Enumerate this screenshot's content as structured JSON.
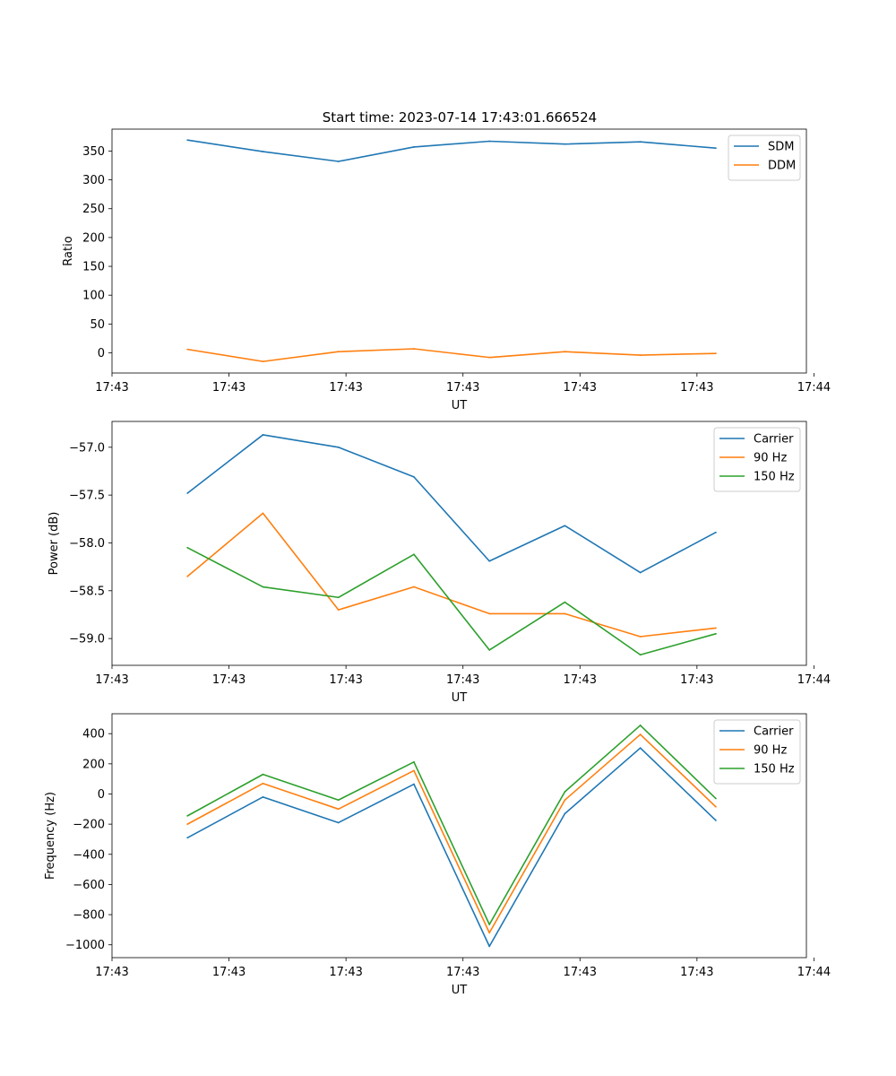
{
  "figure": {
    "title": "Start time: 2023-07-14 17:43:01.666524"
  },
  "chart_data": [
    {
      "type": "line",
      "xlabel": "UT",
      "ylabel": "Ratio",
      "xlim": [
        0,
        9.2
      ],
      "ylim": [
        -35,
        388
      ],
      "x": [
        1,
        2,
        3,
        4,
        5,
        6,
        7,
        8
      ],
      "xticks": [
        0,
        1.55,
        3.1,
        4.65,
        6.2,
        7.75,
        9.3
      ],
      "xtick_labels": [
        "17:43",
        "17:43",
        "17:43",
        "17:43",
        "17:43",
        "17:43",
        "17:44"
      ],
      "yticks": [
        0,
        50,
        100,
        150,
        200,
        250,
        300,
        350
      ],
      "ytick_labels": [
        "0",
        "50",
        "100",
        "150",
        "200",
        "250",
        "300",
        "350"
      ],
      "legend": "top-right",
      "series": [
        {
          "name": "SDM",
          "color": "#1f77b4",
          "values": [
            369,
            349,
            332,
            357,
            367,
            362,
            366,
            355
          ]
        },
        {
          "name": "DDM",
          "color": "#ff7f0e",
          "values": [
            6,
            -15,
            2,
            7,
            -8,
            2,
            -4,
            -1
          ]
        }
      ]
    },
    {
      "type": "line",
      "xlabel": "UT",
      "ylabel": "Power (dB)",
      "xlim": [
        0,
        9.2
      ],
      "ylim": [
        -59.28,
        -56.73
      ],
      "x": [
        1,
        2,
        3,
        4,
        5,
        6,
        7,
        8
      ],
      "xticks": [
        0,
        1.55,
        3.1,
        4.65,
        6.2,
        7.75,
        9.3
      ],
      "xtick_labels": [
        "17:43",
        "17:43",
        "17:43",
        "17:43",
        "17:43",
        "17:43",
        "17:44"
      ],
      "yticks": [
        -59.0,
        -58.5,
        -58.0,
        -57.5,
        -57.0
      ],
      "ytick_labels": [
        "−59.0",
        "−58.5",
        "−58.0",
        "−57.5",
        "−57.0"
      ],
      "legend": "top-right",
      "series": [
        {
          "name": "Carrier",
          "color": "#1f77b4",
          "values": [
            -57.48,
            -56.87,
            -57.0,
            -57.31,
            -58.19,
            -57.82,
            -58.31,
            -57.89
          ]
        },
        {
          "name": "90 Hz",
          "color": "#ff7f0e",
          "values": [
            -58.35,
            -57.69,
            -58.7,
            -58.46,
            -58.74,
            -58.74,
            -58.98,
            -58.89
          ]
        },
        {
          "name": "150 Hz",
          "color": "#2ca02c",
          "values": [
            -58.05,
            -58.46,
            -58.57,
            -58.12,
            -59.12,
            -58.62,
            -59.17,
            -58.95
          ]
        }
      ]
    },
    {
      "type": "line",
      "xlabel": "UT",
      "ylabel": "Frequency (Hz)",
      "xlim": [
        0,
        9.2
      ],
      "ylim": [
        -1085,
        532
      ],
      "x": [
        1,
        2,
        3,
        4,
        5,
        6,
        7,
        8
      ],
      "xticks": [
        0,
        1.55,
        3.1,
        4.65,
        6.2,
        7.75,
        9.3
      ],
      "xtick_labels": [
        "17:43",
        "17:43",
        "17:43",
        "17:43",
        "17:43",
        "17:43",
        "17:44"
      ],
      "yticks": [
        -1000,
        -800,
        -600,
        -400,
        -200,
        0,
        200,
        400
      ],
      "ytick_labels": [
        "−1000",
        "−800",
        "−600",
        "−400",
        "−200",
        "0",
        "200",
        "400"
      ],
      "legend": "top-right",
      "series": [
        {
          "name": "Carrier",
          "color": "#1f77b4",
          "values": [
            -290,
            -20,
            -190,
            65,
            -1010,
            -130,
            305,
            -175
          ]
        },
        {
          "name": "90 Hz",
          "color": "#ff7f0e",
          "values": [
            -200,
            70,
            -100,
            155,
            -920,
            -40,
            395,
            -85
          ]
        },
        {
          "name": "150 Hz",
          "color": "#2ca02c",
          "values": [
            -145,
            130,
            -40,
            212,
            -865,
            15,
            455,
            -30
          ]
        }
      ]
    }
  ]
}
